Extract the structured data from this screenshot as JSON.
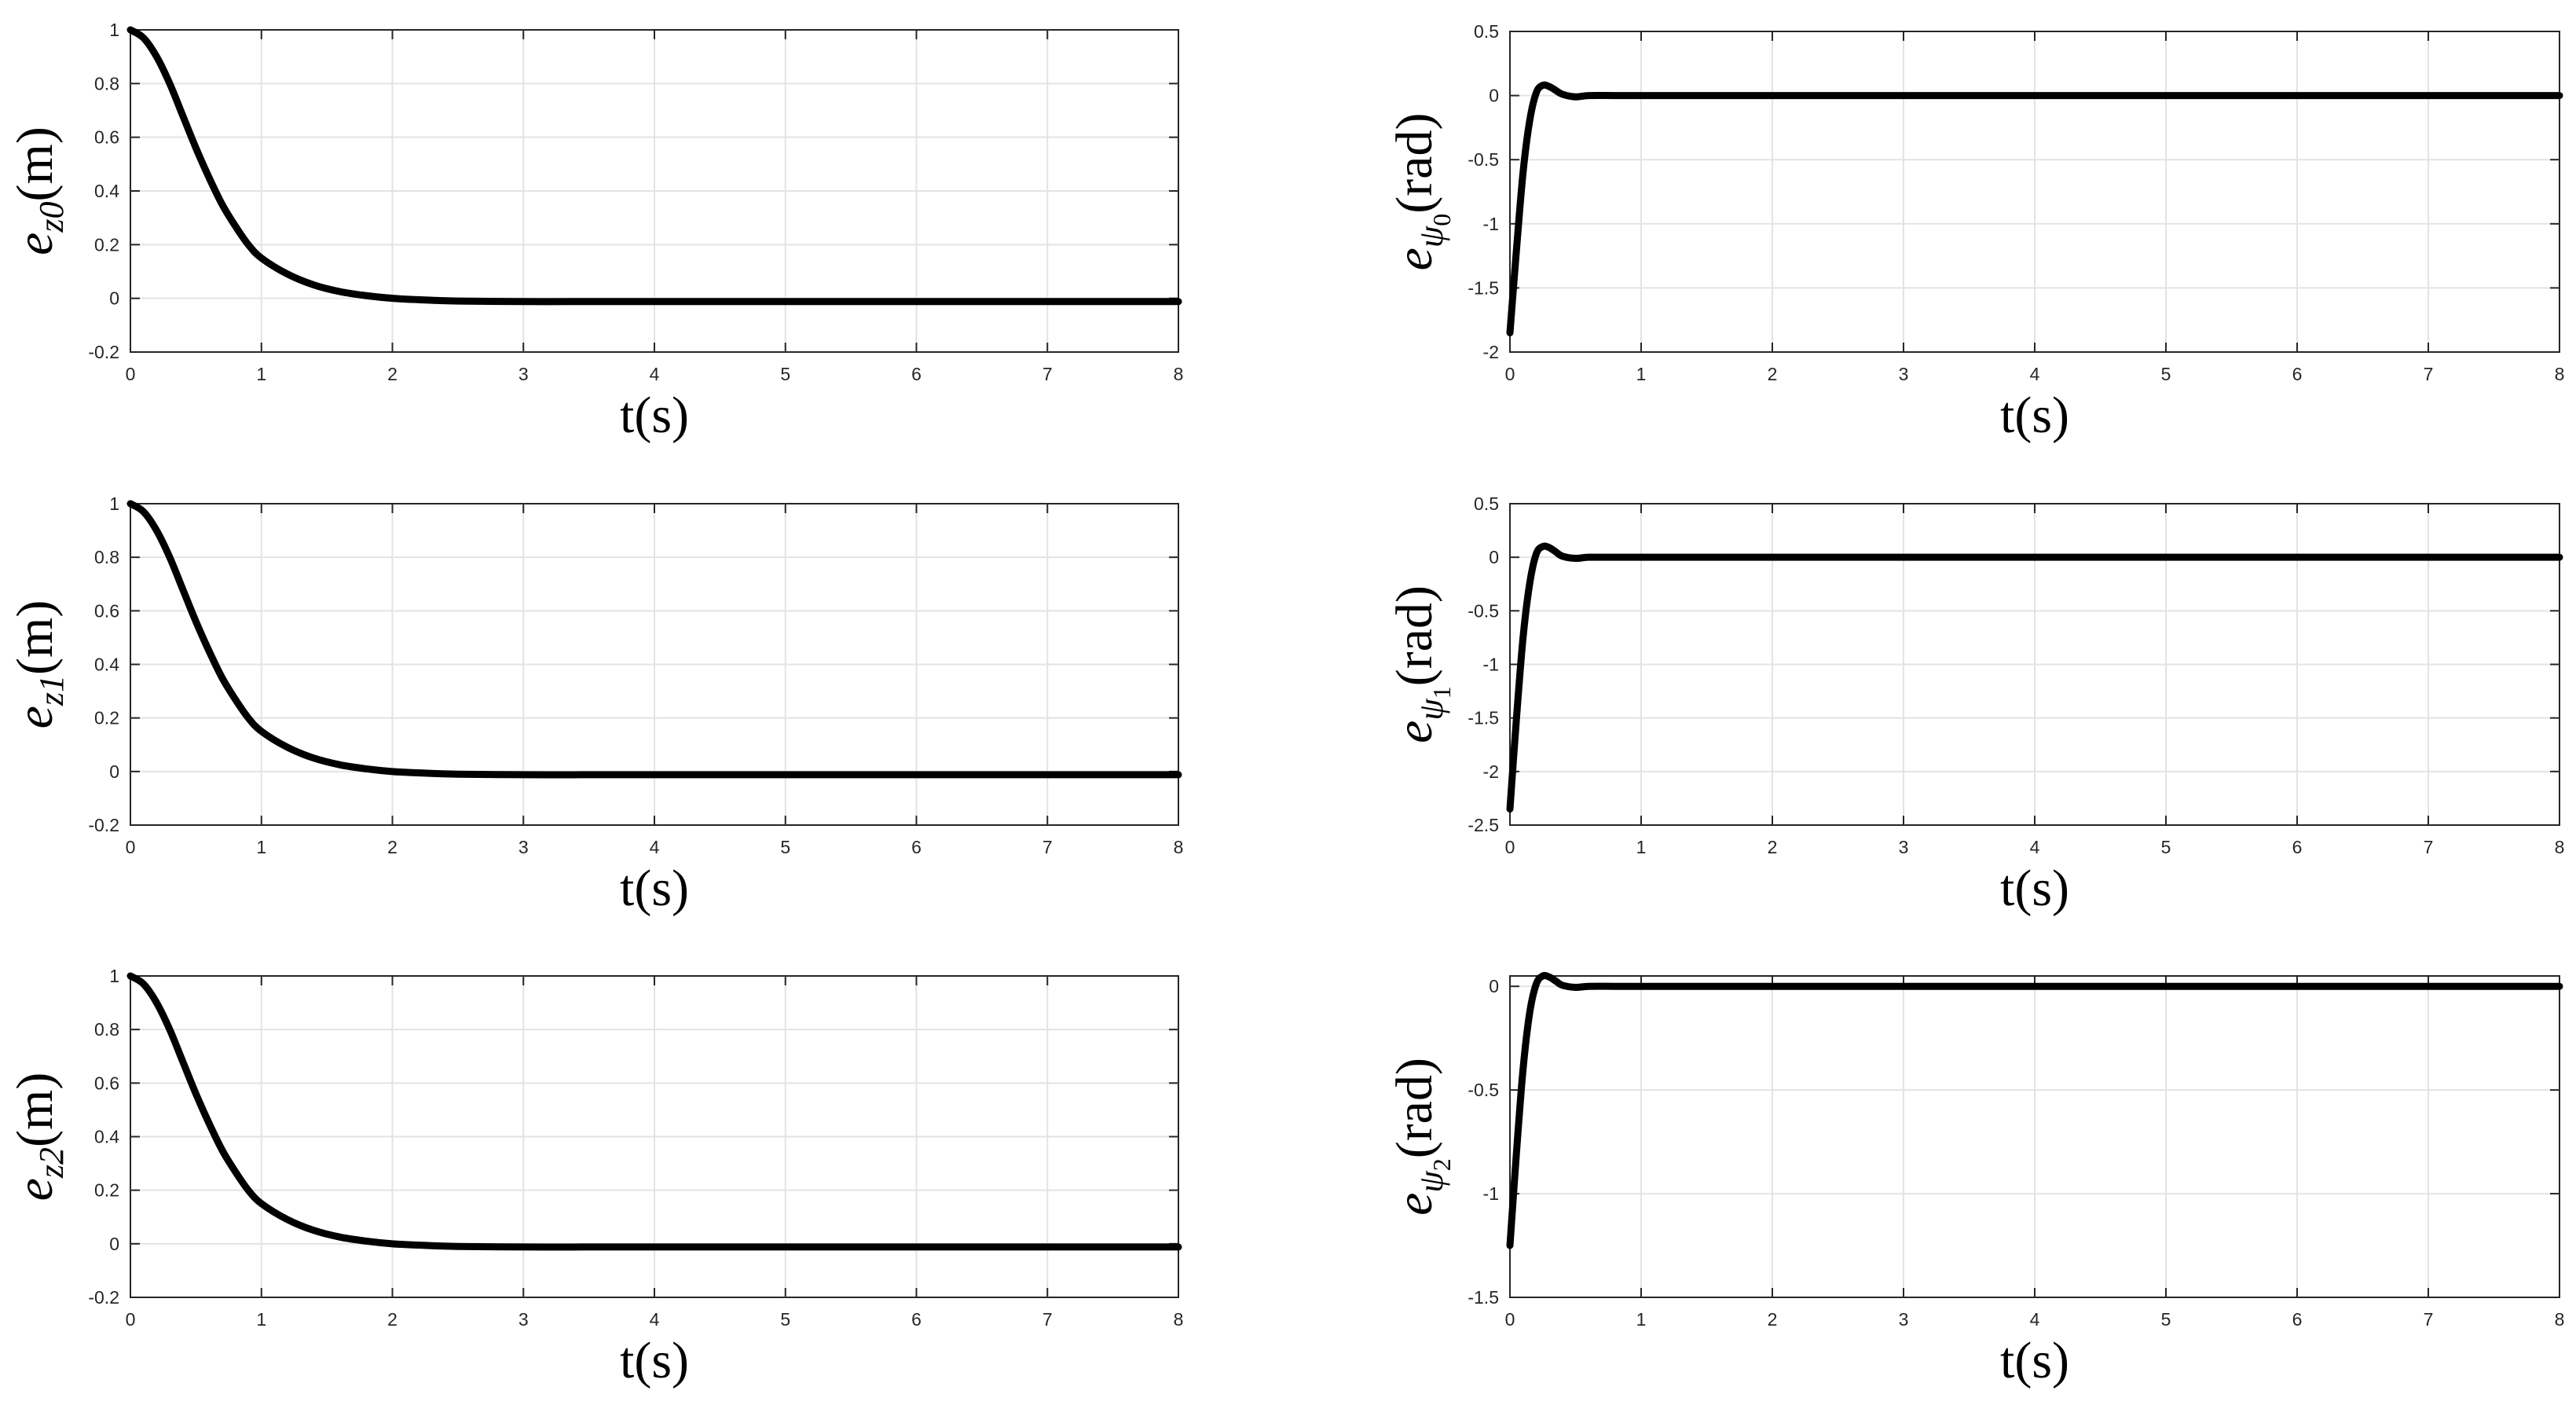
{
  "style": {
    "line_color": "#000000",
    "grid_color": "#e3e3e3",
    "axis_color": "#262626",
    "background": "#ffffff"
  },
  "chart_data": [
    {
      "type": "line",
      "panel": "top-left",
      "xlabel": "t(s)",
      "ylabel": {
        "base": "e",
        "subscript": "z0",
        "unit": "(m)"
      },
      "xlim": [
        0,
        8
      ],
      "ylim": [
        -0.2,
        1
      ],
      "xticks": [
        0,
        1,
        2,
        3,
        4,
        5,
        6,
        7,
        8
      ],
      "yticks": [
        -0.2,
        0,
        0.2,
        0.4,
        0.6,
        0.8,
        1
      ],
      "grid": true,
      "series": [
        {
          "x": [
            0,
            0.1,
            0.2,
            0.3,
            0.4,
            0.5,
            0.6,
            0.7,
            0.8,
            0.9,
            1.0,
            1.2,
            1.4,
            1.6,
            1.8,
            2.0,
            2.2,
            2.5,
            3.0,
            3.5,
            4,
            5,
            6,
            7,
            8
          ],
          "y": [
            1.0,
            0.97,
            0.9,
            0.8,
            0.68,
            0.56,
            0.45,
            0.35,
            0.27,
            0.2,
            0.15,
            0.09,
            0.05,
            0.025,
            0.01,
            0.0,
            -0.005,
            -0.01,
            -0.012,
            -0.012,
            -0.012,
            -0.012,
            -0.012,
            -0.012,
            -0.012
          ]
        }
      ]
    },
    {
      "type": "line",
      "panel": "top-right",
      "xlabel": "t(s)",
      "ylabel": {
        "base": "e",
        "subscript": "ψ",
        "subsubscript": "0",
        "unit": "(rad)"
      },
      "xlim": [
        0,
        8
      ],
      "ylim": [
        -2,
        0.5
      ],
      "xticks": [
        0,
        1,
        2,
        3,
        4,
        5,
        6,
        7,
        8
      ],
      "yticks": [
        -2,
        -1.5,
        -1,
        -0.5,
        0,
        0.5
      ],
      "grid": true,
      "series": [
        {
          "x": [
            0,
            0.05,
            0.1,
            0.15,
            0.2,
            0.25,
            0.3,
            0.35,
            0.4,
            0.5,
            0.6,
            0.8,
            1,
            2,
            4,
            6,
            8
          ],
          "y": [
            -1.85,
            -1.2,
            -0.6,
            -0.2,
            0.02,
            0.08,
            0.07,
            0.04,
            0.01,
            -0.01,
            0,
            0,
            0,
            0,
            0,
            0,
            0
          ]
        }
      ]
    },
    {
      "type": "line",
      "panel": "middle-left",
      "xlabel": "t(s)",
      "ylabel": {
        "base": "e",
        "subscript": "z1",
        "unit": "(m)"
      },
      "xlim": [
        0,
        8
      ],
      "ylim": [
        -0.2,
        1
      ],
      "xticks": [
        0,
        1,
        2,
        3,
        4,
        5,
        6,
        7,
        8
      ],
      "yticks": [
        -0.2,
        0,
        0.2,
        0.4,
        0.6,
        0.8,
        1
      ],
      "grid": true,
      "series": [
        {
          "x": [
            0,
            0.1,
            0.2,
            0.3,
            0.4,
            0.5,
            0.6,
            0.7,
            0.8,
            0.9,
            1.0,
            1.2,
            1.4,
            1.6,
            1.8,
            2.0,
            2.2,
            2.5,
            3.0,
            3.5,
            4,
            5,
            6,
            7,
            8
          ],
          "y": [
            1.0,
            0.97,
            0.9,
            0.8,
            0.68,
            0.56,
            0.45,
            0.35,
            0.27,
            0.2,
            0.15,
            0.09,
            0.05,
            0.025,
            0.01,
            0.0,
            -0.005,
            -0.01,
            -0.012,
            -0.012,
            -0.012,
            -0.012,
            -0.012,
            -0.012,
            -0.012
          ]
        }
      ]
    },
    {
      "type": "line",
      "panel": "middle-right",
      "xlabel": "t(s)",
      "ylabel": {
        "base": "e",
        "subscript": "ψ",
        "subsubscript": "1",
        "unit": "(rad)"
      },
      "xlim": [
        0,
        8
      ],
      "ylim": [
        -2.5,
        0.5
      ],
      "xticks": [
        0,
        1,
        2,
        3,
        4,
        5,
        6,
        7,
        8
      ],
      "yticks": [
        -2.5,
        -2,
        -1.5,
        -1,
        -0.5,
        0,
        0.5
      ],
      "grid": true,
      "series": [
        {
          "x": [
            0,
            0.05,
            0.1,
            0.15,
            0.2,
            0.25,
            0.3,
            0.35,
            0.4,
            0.5,
            0.6,
            0.8,
            1,
            2,
            4,
            6,
            8
          ],
          "y": [
            -2.35,
            -1.5,
            -0.75,
            -0.25,
            0.03,
            0.1,
            0.09,
            0.05,
            0.01,
            -0.01,
            0,
            0,
            0,
            0,
            0,
            0,
            0
          ]
        }
      ]
    },
    {
      "type": "line",
      "panel": "bottom-left",
      "xlabel": "t(s)",
      "ylabel": {
        "base": "e",
        "subscript": "z2",
        "unit": "(m)"
      },
      "xlim": [
        0,
        8
      ],
      "ylim": [
        -0.2,
        1
      ],
      "xticks": [
        0,
        1,
        2,
        3,
        4,
        5,
        6,
        7,
        8
      ],
      "yticks": [
        -0.2,
        0,
        0.2,
        0.4,
        0.6,
        0.8,
        1
      ],
      "grid": true,
      "series": [
        {
          "x": [
            0,
            0.1,
            0.2,
            0.3,
            0.4,
            0.5,
            0.6,
            0.7,
            0.8,
            0.9,
            1.0,
            1.2,
            1.4,
            1.6,
            1.8,
            2.0,
            2.2,
            2.5,
            3.0,
            3.5,
            4,
            5,
            6,
            7,
            8
          ],
          "y": [
            1.0,
            0.97,
            0.9,
            0.8,
            0.68,
            0.56,
            0.45,
            0.35,
            0.27,
            0.2,
            0.15,
            0.09,
            0.05,
            0.025,
            0.01,
            0.0,
            -0.005,
            -0.01,
            -0.012,
            -0.012,
            -0.012,
            -0.012,
            -0.012,
            -0.012,
            -0.012
          ]
        }
      ]
    },
    {
      "type": "line",
      "panel": "bottom-right",
      "xlabel": "t(s)",
      "ylabel": {
        "base": "e",
        "subscript": "ψ",
        "subsubscript": "2",
        "unit": "(rad)"
      },
      "xlim": [
        0,
        8
      ],
      "ylim": [
        -1.5,
        0.05
      ],
      "xticks": [
        0,
        1,
        2,
        3,
        4,
        5,
        6,
        7,
        8
      ],
      "yticks": [
        -1.5,
        -1,
        -0.5,
        0
      ],
      "grid": true,
      "series": [
        {
          "x": [
            0,
            0.05,
            0.1,
            0.15,
            0.2,
            0.25,
            0.3,
            0.35,
            0.4,
            0.5,
            0.6,
            0.8,
            1,
            2,
            4,
            6,
            8
          ],
          "y": [
            -1.25,
            -0.8,
            -0.4,
            -0.13,
            0.01,
            0.05,
            0.045,
            0.025,
            0.005,
            -0.005,
            0,
            0,
            0,
            0,
            0,
            0,
            0
          ]
        }
      ]
    }
  ]
}
